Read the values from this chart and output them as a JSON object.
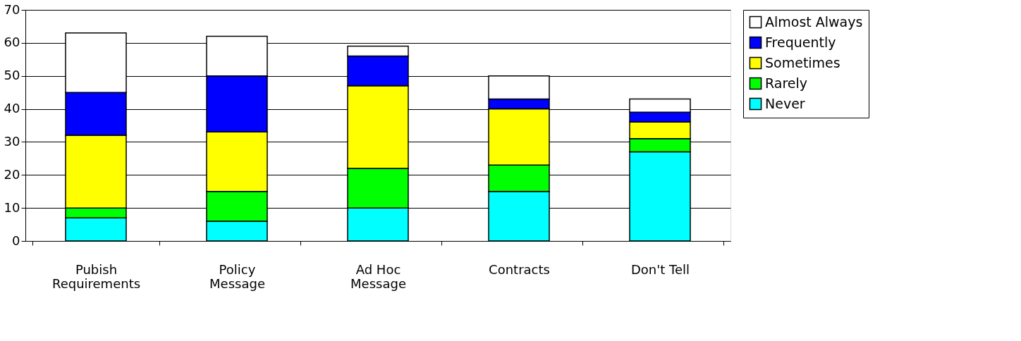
{
  "chart_data": {
    "type": "bar",
    "stacked": true,
    "categories": [
      "Pubish\nRequirements",
      "Policy\nMessage",
      "Ad Hoc\nMessage",
      "Contracts",
      "Don't Tell"
    ],
    "series": [
      {
        "name": "Never",
        "color": "#00ffff",
        "values": [
          7,
          6,
          10,
          15,
          27
        ]
      },
      {
        "name": "Rarely",
        "color": "#00ff00",
        "values": [
          3,
          9,
          12,
          8,
          4
        ]
      },
      {
        "name": "Sometimes",
        "color": "#ffff00",
        "values": [
          22,
          18,
          25,
          17,
          5
        ]
      },
      {
        "name": "Frequently",
        "color": "#0000ff",
        "values": [
          13,
          17,
          9,
          3,
          3
        ]
      },
      {
        "name": "Almost Always",
        "color": "#ffffff",
        "values": [
          18,
          12,
          3,
          7,
          4
        ]
      }
    ],
    "ylim": [
      0,
      70
    ],
    "yticks": [
      0,
      10,
      20,
      30,
      40,
      50,
      60,
      70
    ],
    "grid": "y",
    "legend": "right"
  }
}
